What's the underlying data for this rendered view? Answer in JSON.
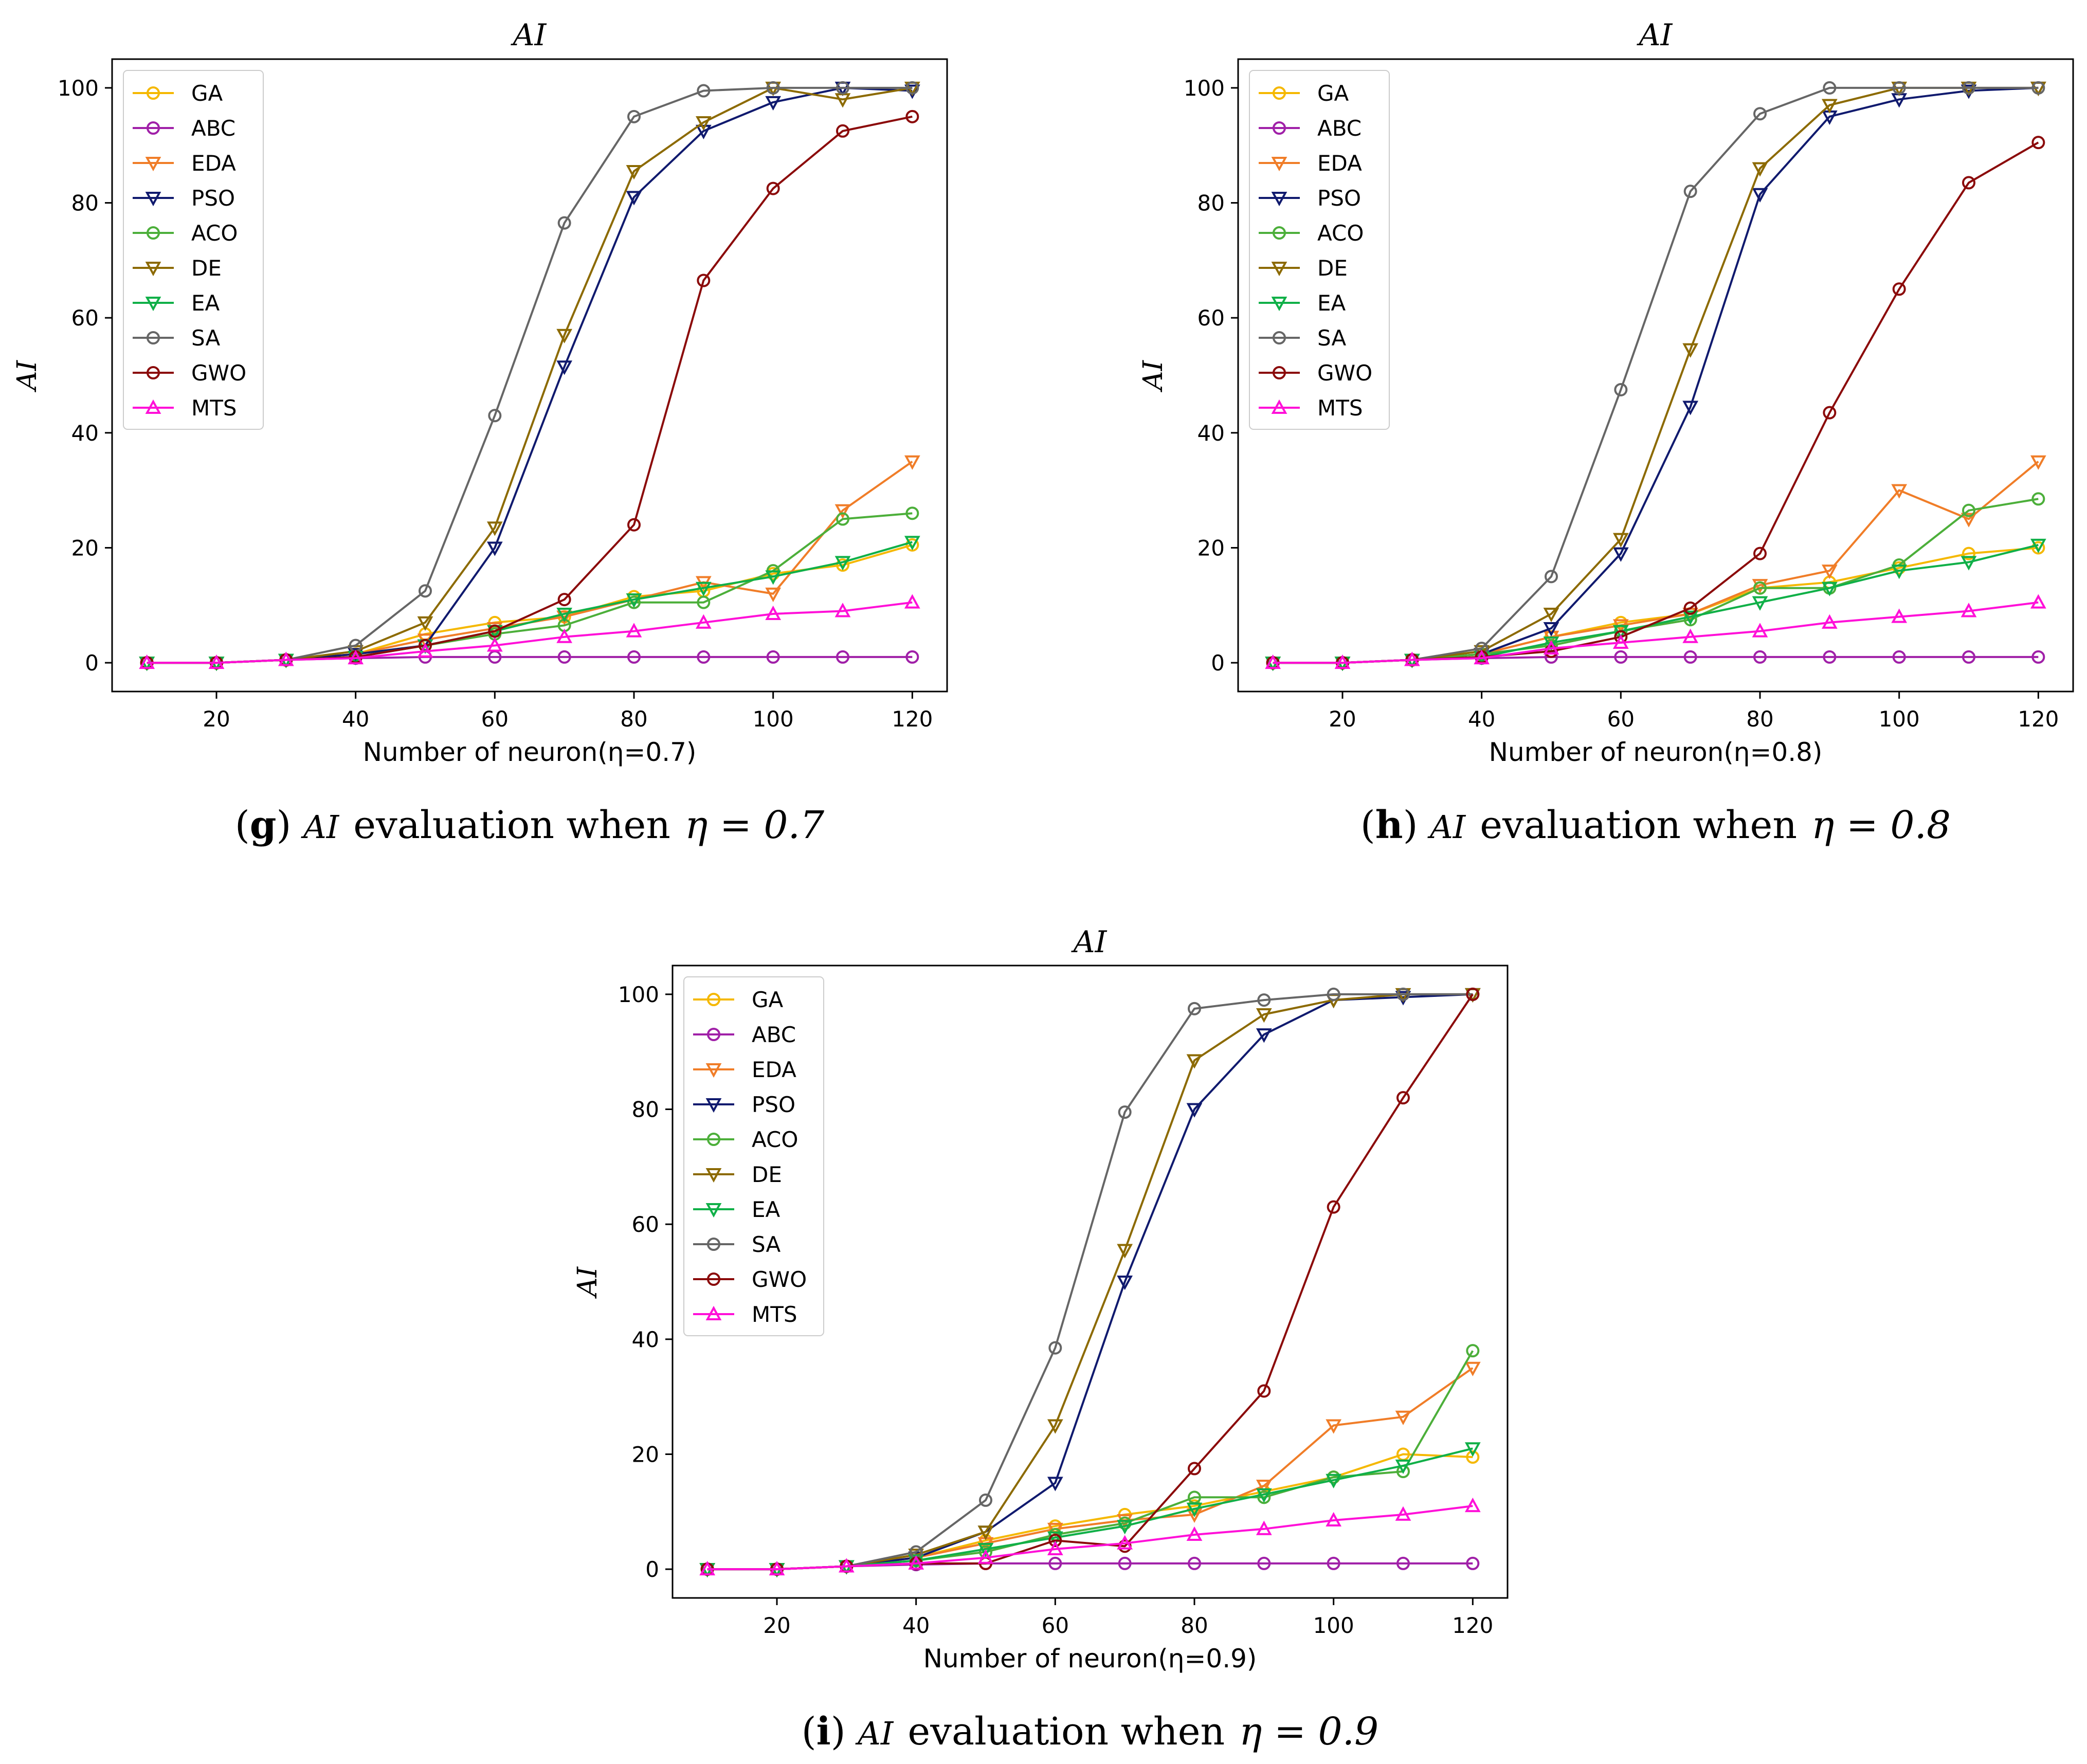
{
  "colors": {
    "GA": "#f5b800",
    "ABC": "#a020a8",
    "EDA": "#f07d28",
    "PSO": "#101a6e",
    "ACO": "#4caf3a",
    "DE": "#8c6a00",
    "EA": "#10b048",
    "SA": "#666666",
    "GWO": "#8b0a0a",
    "MTS": "#ff10d8"
  },
  "markers": {
    "GA": "circle",
    "ABC": "circle",
    "EDA": "tri-down",
    "PSO": "tri-down",
    "ACO": "circle",
    "DE": "tri-down",
    "EA": "tri-down",
    "SA": "circle",
    "GWO": "circle",
    "MTS": "tri-up"
  },
  "chart_data": [
    {
      "type": "line",
      "title": "AI",
      "xlabel": "Number of neuron(η=0.7)",
      "ylabel": "AI",
      "caption_letter": "g",
      "caption_text": "AI evaluation when η = 0.7",
      "caption_parts": {
        "ai": "AI",
        "evaluation": "evaluation when",
        "eta": "η = 0.7"
      },
      "legend_location": "top-left",
      "xlim": [
        5,
        125
      ],
      "ylim": [
        -5,
        105
      ],
      "xticks": [
        20,
        40,
        60,
        80,
        100,
        120
      ],
      "yticks": [
        0,
        20,
        40,
        60,
        80,
        100
      ],
      "x": [
        10,
        20,
        30,
        40,
        50,
        60,
        70,
        80,
        90,
        100,
        110,
        120
      ],
      "series": [
        {
          "name": "GA",
          "values": [
            0,
            0,
            0.5,
            1.5,
            5,
            7,
            8,
            11.5,
            12.5,
            15.5,
            17,
            20.5
          ]
        },
        {
          "name": "ABC",
          "values": [
            0,
            0,
            0.5,
            0.8,
            1,
            1,
            1,
            1,
            1,
            1,
            1,
            1
          ]
        },
        {
          "name": "EDA",
          "values": [
            0,
            0,
            0.5,
            1.5,
            4,
            6,
            8,
            11,
            14,
            12,
            26.5,
            35
          ]
        },
        {
          "name": "PSO",
          "values": [
            0,
            0,
            0.5,
            1.5,
            3,
            20,
            51.5,
            81,
            92.5,
            97.5,
            100,
            99.5
          ]
        },
        {
          "name": "ACO",
          "values": [
            0,
            0,
            0.5,
            1,
            3,
            5,
            6.5,
            10.5,
            10.5,
            16,
            25,
            26
          ]
        },
        {
          "name": "DE",
          "values": [
            0,
            0,
            0.5,
            2,
            7,
            23.5,
            57,
            85.5,
            94,
            100,
            98,
            100
          ]
        },
        {
          "name": "EA",
          "values": [
            0,
            0,
            0.5,
            1,
            3,
            5.5,
            8.5,
            11,
            13,
            15,
            17.5,
            21
          ]
        },
        {
          "name": "SA",
          "values": [
            0,
            0,
            0.5,
            3,
            12.5,
            43,
            76.5,
            95,
            99.5,
            100,
            100,
            100
          ]
        },
        {
          "name": "GWO",
          "values": [
            0,
            0,
            0.5,
            1,
            3,
            5.5,
            11,
            24,
            66.5,
            82.5,
            92.5,
            95
          ]
        },
        {
          "name": "MTS",
          "values": [
            0,
            0,
            0.5,
            0.8,
            2,
            3,
            4.5,
            5.5,
            7,
            8.5,
            9,
            10.5
          ]
        }
      ]
    },
    {
      "type": "line",
      "title": "AI",
      "xlabel": "Number of neuron(η=0.8)",
      "ylabel": "AI",
      "caption_letter": "h",
      "caption_text": "AI evaluation when η = 0.8",
      "caption_parts": {
        "ai": "AI",
        "evaluation": "evaluation when",
        "eta": "η = 0.8"
      },
      "legend_location": "top-left",
      "xlim": [
        5,
        125
      ],
      "ylim": [
        -5,
        105
      ],
      "xticks": [
        20,
        40,
        60,
        80,
        100,
        120
      ],
      "yticks": [
        0,
        20,
        40,
        60,
        80,
        100
      ],
      "x": [
        10,
        20,
        30,
        40,
        50,
        60,
        70,
        80,
        90,
        100,
        110,
        120
      ],
      "series": [
        {
          "name": "GA",
          "values": [
            0,
            0,
            0.5,
            1.5,
            4.5,
            7,
            8.5,
            13,
            14,
            16.5,
            19,
            20
          ]
        },
        {
          "name": "ABC",
          "values": [
            0,
            0,
            0.5,
            0.8,
            1,
            1,
            1,
            1,
            1,
            1,
            1,
            1
          ]
        },
        {
          "name": "EDA",
          "values": [
            0,
            0,
            0.5,
            1.5,
            4.5,
            6.5,
            8.5,
            13.5,
            16,
            30,
            25,
            35
          ]
        },
        {
          "name": "PSO",
          "values": [
            0,
            0,
            0.5,
            1.5,
            6,
            19,
            44.5,
            81.5,
            95,
            98,
            99.5,
            100
          ]
        },
        {
          "name": "ACO",
          "values": [
            0,
            0,
            0.5,
            1.5,
            3,
            5.5,
            7.5,
            13,
            13,
            17,
            26.5,
            28.5
          ]
        },
        {
          "name": "DE",
          "values": [
            0,
            0,
            0.5,
            2,
            8.5,
            21.5,
            54.5,
            86,
            97,
            100,
            100,
            100
          ]
        },
        {
          "name": "EA",
          "values": [
            0,
            0,
            0.5,
            1,
            3.5,
            5.5,
            8,
            10.5,
            13,
            16,
            17.5,
            20.5
          ]
        },
        {
          "name": "SA",
          "values": [
            0,
            0,
            0.5,
            2.5,
            15,
            47.5,
            82,
            95.5,
            100,
            100,
            100,
            100
          ]
        },
        {
          "name": "GWO",
          "values": [
            0,
            0,
            0.5,
            1,
            2,
            4.5,
            9.5,
            19,
            43.5,
            65,
            83.5,
            90.5
          ]
        },
        {
          "name": "MTS",
          "values": [
            0,
            0,
            0.5,
            0.8,
            2.5,
            3.5,
            4.5,
            5.5,
            7,
            8,
            9,
            10.5
          ]
        }
      ]
    },
    {
      "type": "line",
      "title": "AI",
      "xlabel": "Number of neuron(η=0.9)",
      "ylabel": "AI",
      "caption_letter": "i",
      "caption_text": "AI evaluation when η = 0.9",
      "caption_parts": {
        "ai": "AI",
        "evaluation": "evaluation when",
        "eta": "η = 0.9"
      },
      "legend_location": "top-left",
      "xlim": [
        5,
        125
      ],
      "ylim": [
        -5,
        105
      ],
      "xticks": [
        20,
        40,
        60,
        80,
        100,
        120
      ],
      "yticks": [
        0,
        20,
        40,
        60,
        80,
        100
      ],
      "x": [
        10,
        20,
        30,
        40,
        50,
        60,
        70,
        80,
        90,
        100,
        110,
        120
      ],
      "series": [
        {
          "name": "GA",
          "values": [
            0,
            0,
            0.5,
            2,
            5,
            7.5,
            9.5,
            11,
            13.5,
            16,
            20,
            19.5
          ]
        },
        {
          "name": "ABC",
          "values": [
            0,
            0,
            0.5,
            0.8,
            1,
            1,
            1,
            1,
            1,
            1,
            1,
            1
          ]
        },
        {
          "name": "EDA",
          "values": [
            0,
            0,
            0.5,
            2,
            4.5,
            7,
            8.5,
            9.5,
            14.5,
            25,
            26.5,
            35
          ]
        },
        {
          "name": "PSO",
          "values": [
            0,
            0,
            0.5,
            2,
            6.5,
            15,
            50,
            80,
            93,
            99,
            99.5,
            100
          ]
        },
        {
          "name": "ACO",
          "values": [
            0,
            0,
            0.5,
            1.5,
            3,
            6,
            8,
            12.5,
            12.5,
            16,
            17,
            38
          ]
        },
        {
          "name": "DE",
          "values": [
            0,
            0,
            0.5,
            2.5,
            6.5,
            25,
            55.5,
            88.5,
            96.5,
            99,
            100,
            100
          ]
        },
        {
          "name": "EA",
          "values": [
            0,
            0,
            0.5,
            1.5,
            3.5,
            5.5,
            7.5,
            10.5,
            13,
            15.5,
            18,
            21
          ]
        },
        {
          "name": "SA",
          "values": [
            0,
            0,
            0.5,
            3,
            12,
            38.5,
            79.5,
            97.5,
            99,
            100,
            100,
            100
          ]
        },
        {
          "name": "GWO",
          "values": [
            0,
            0,
            0.5,
            1,
            1,
            5,
            4,
            17.5,
            31,
            63,
            82,
            100
          ]
        },
        {
          "name": "MTS",
          "values": [
            0,
            0,
            0.5,
            1,
            2,
            3.5,
            4.5,
            6,
            7,
            8.5,
            9.5,
            11
          ]
        }
      ]
    }
  ]
}
